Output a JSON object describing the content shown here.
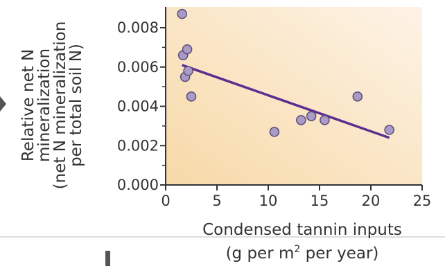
{
  "chart_data": {
    "type": "scatter",
    "xlabel_line1": "Condensed tannin inputs",
    "xlabel_line2_parts": [
      "(g per m",
      "2",
      " per year)"
    ],
    "ylabel_lines": [
      "Relative net N",
      "mineralization",
      "(net N mineralization",
      "per total soil N)"
    ],
    "x_ticks": [
      "0",
      "5",
      "10",
      "15",
      "20",
      "25"
    ],
    "y_ticks": [
      "0.000",
      "0.002",
      "0.004",
      "0.006",
      "0.008"
    ],
    "xlim": [
      0,
      25
    ],
    "ylim": [
      0,
      0.009
    ],
    "points": [
      {
        "x": 1.6,
        "y": 0.0087
      },
      {
        "x": 1.7,
        "y": 0.0066
      },
      {
        "x": 2.1,
        "y": 0.0069
      },
      {
        "x": 1.9,
        "y": 0.0055
      },
      {
        "x": 2.2,
        "y": 0.0058
      },
      {
        "x": 2.5,
        "y": 0.0045
      },
      {
        "x": 10.6,
        "y": 0.0027
      },
      {
        "x": 13.2,
        "y": 0.0033
      },
      {
        "x": 14.2,
        "y": 0.0035
      },
      {
        "x": 15.5,
        "y": 0.0033
      },
      {
        "x": 18.7,
        "y": 0.0045
      },
      {
        "x": 21.8,
        "y": 0.0028
      }
    ],
    "trendline": {
      "x": [
        1.6,
        21.8
      ],
      "y": [
        0.0061,
        0.0024
      ]
    },
    "colors": {
      "point_fill": "#a99bc6",
      "point_stroke": "#5a4a7a",
      "line": "#5c2d91",
      "bg_left": "#f7d9a8",
      "bg_right": "#fdf3e6",
      "axis": "#333333"
    }
  }
}
